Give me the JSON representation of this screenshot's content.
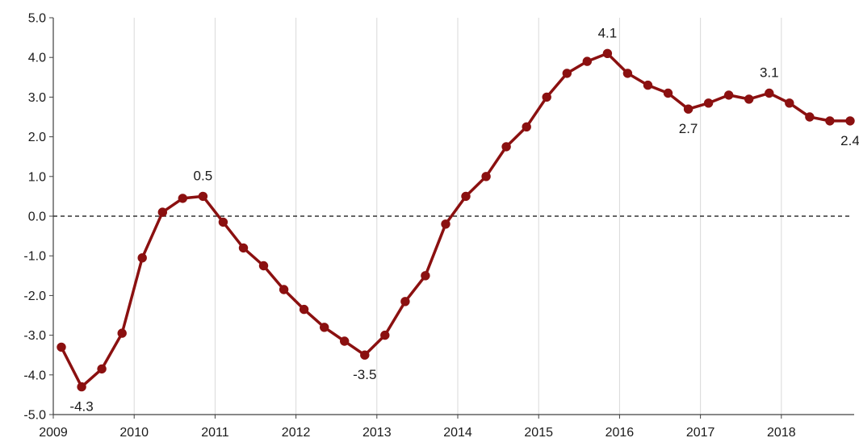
{
  "chart_data": {
    "type": "line",
    "title": "",
    "xlabel": "",
    "ylabel": "",
    "ylim": [
      -5.0,
      5.0
    ],
    "y_ticks": [
      "5.0",
      "4.0",
      "3.0",
      "2.0",
      "1.0",
      "0.0",
      "-1.0",
      "-2.0",
      "-3.0",
      "-4.0",
      "-5.0"
    ],
    "x_tick_labels": [
      "2009",
      "2010",
      "2011",
      "2012",
      "2013",
      "2014",
      "2015",
      "2016",
      "2017",
      "2018"
    ],
    "grid": "vertical",
    "reference_line": {
      "y": 0.0,
      "style": "dashed"
    },
    "series": [
      {
        "color": "#8b1010",
        "points": [
          {
            "x": 2009.1,
            "y": -3.3
          },
          {
            "x": 2009.35,
            "y": -4.3
          },
          {
            "x": 2009.6,
            "y": -3.85
          },
          {
            "x": 2009.85,
            "y": -2.95
          },
          {
            "x": 2010.1,
            "y": -1.05
          },
          {
            "x": 2010.35,
            "y": 0.1
          },
          {
            "x": 2010.6,
            "y": 0.45
          },
          {
            "x": 2010.85,
            "y": 0.5
          },
          {
            "x": 2011.1,
            "y": -0.15
          },
          {
            "x": 2011.35,
            "y": -0.8
          },
          {
            "x": 2011.6,
            "y": -1.25
          },
          {
            "x": 2011.85,
            "y": -1.85
          },
          {
            "x": 2012.1,
            "y": -2.35
          },
          {
            "x": 2012.35,
            "y": -2.8
          },
          {
            "x": 2012.6,
            "y": -3.15
          },
          {
            "x": 2012.85,
            "y": -3.5
          },
          {
            "x": 2013.1,
            "y": -3.0
          },
          {
            "x": 2013.35,
            "y": -2.15
          },
          {
            "x": 2013.6,
            "y": -1.5
          },
          {
            "x": 2013.85,
            "y": -0.2
          },
          {
            "x": 2014.1,
            "y": 0.5
          },
          {
            "x": 2014.35,
            "y": 1.0
          },
          {
            "x": 2014.6,
            "y": 1.75
          },
          {
            "x": 2014.85,
            "y": 2.25
          },
          {
            "x": 2015.1,
            "y": 3.0
          },
          {
            "x": 2015.35,
            "y": 3.6
          },
          {
            "x": 2015.6,
            "y": 3.9
          },
          {
            "x": 2015.85,
            "y": 4.1
          },
          {
            "x": 2016.1,
            "y": 3.6
          },
          {
            "x": 2016.35,
            "y": 3.3
          },
          {
            "x": 2016.6,
            "y": 3.1
          },
          {
            "x": 2016.85,
            "y": 2.7
          },
          {
            "x": 2017.1,
            "y": 2.85
          },
          {
            "x": 2017.35,
            "y": 3.05
          },
          {
            "x": 2017.6,
            "y": 2.95
          },
          {
            "x": 2017.85,
            "y": 3.1
          },
          {
            "x": 2018.1,
            "y": 2.85
          },
          {
            "x": 2018.35,
            "y": 2.5
          },
          {
            "x": 2018.6,
            "y": 2.4
          },
          {
            "x": 2018.85,
            "y": 2.4
          }
        ]
      }
    ],
    "annotations": [
      {
        "point_index": 1,
        "text": "-4.3",
        "position": "below"
      },
      {
        "point_index": 7,
        "text": "0.5",
        "position": "above"
      },
      {
        "point_index": 15,
        "text": "-3.5",
        "position": "below"
      },
      {
        "point_index": 27,
        "text": "4.1",
        "position": "above"
      },
      {
        "point_index": 31,
        "text": "2.7",
        "position": "below"
      },
      {
        "point_index": 35,
        "text": "3.1",
        "position": "above"
      },
      {
        "point_index": 39,
        "text": "2.4",
        "position": "below"
      }
    ]
  }
}
